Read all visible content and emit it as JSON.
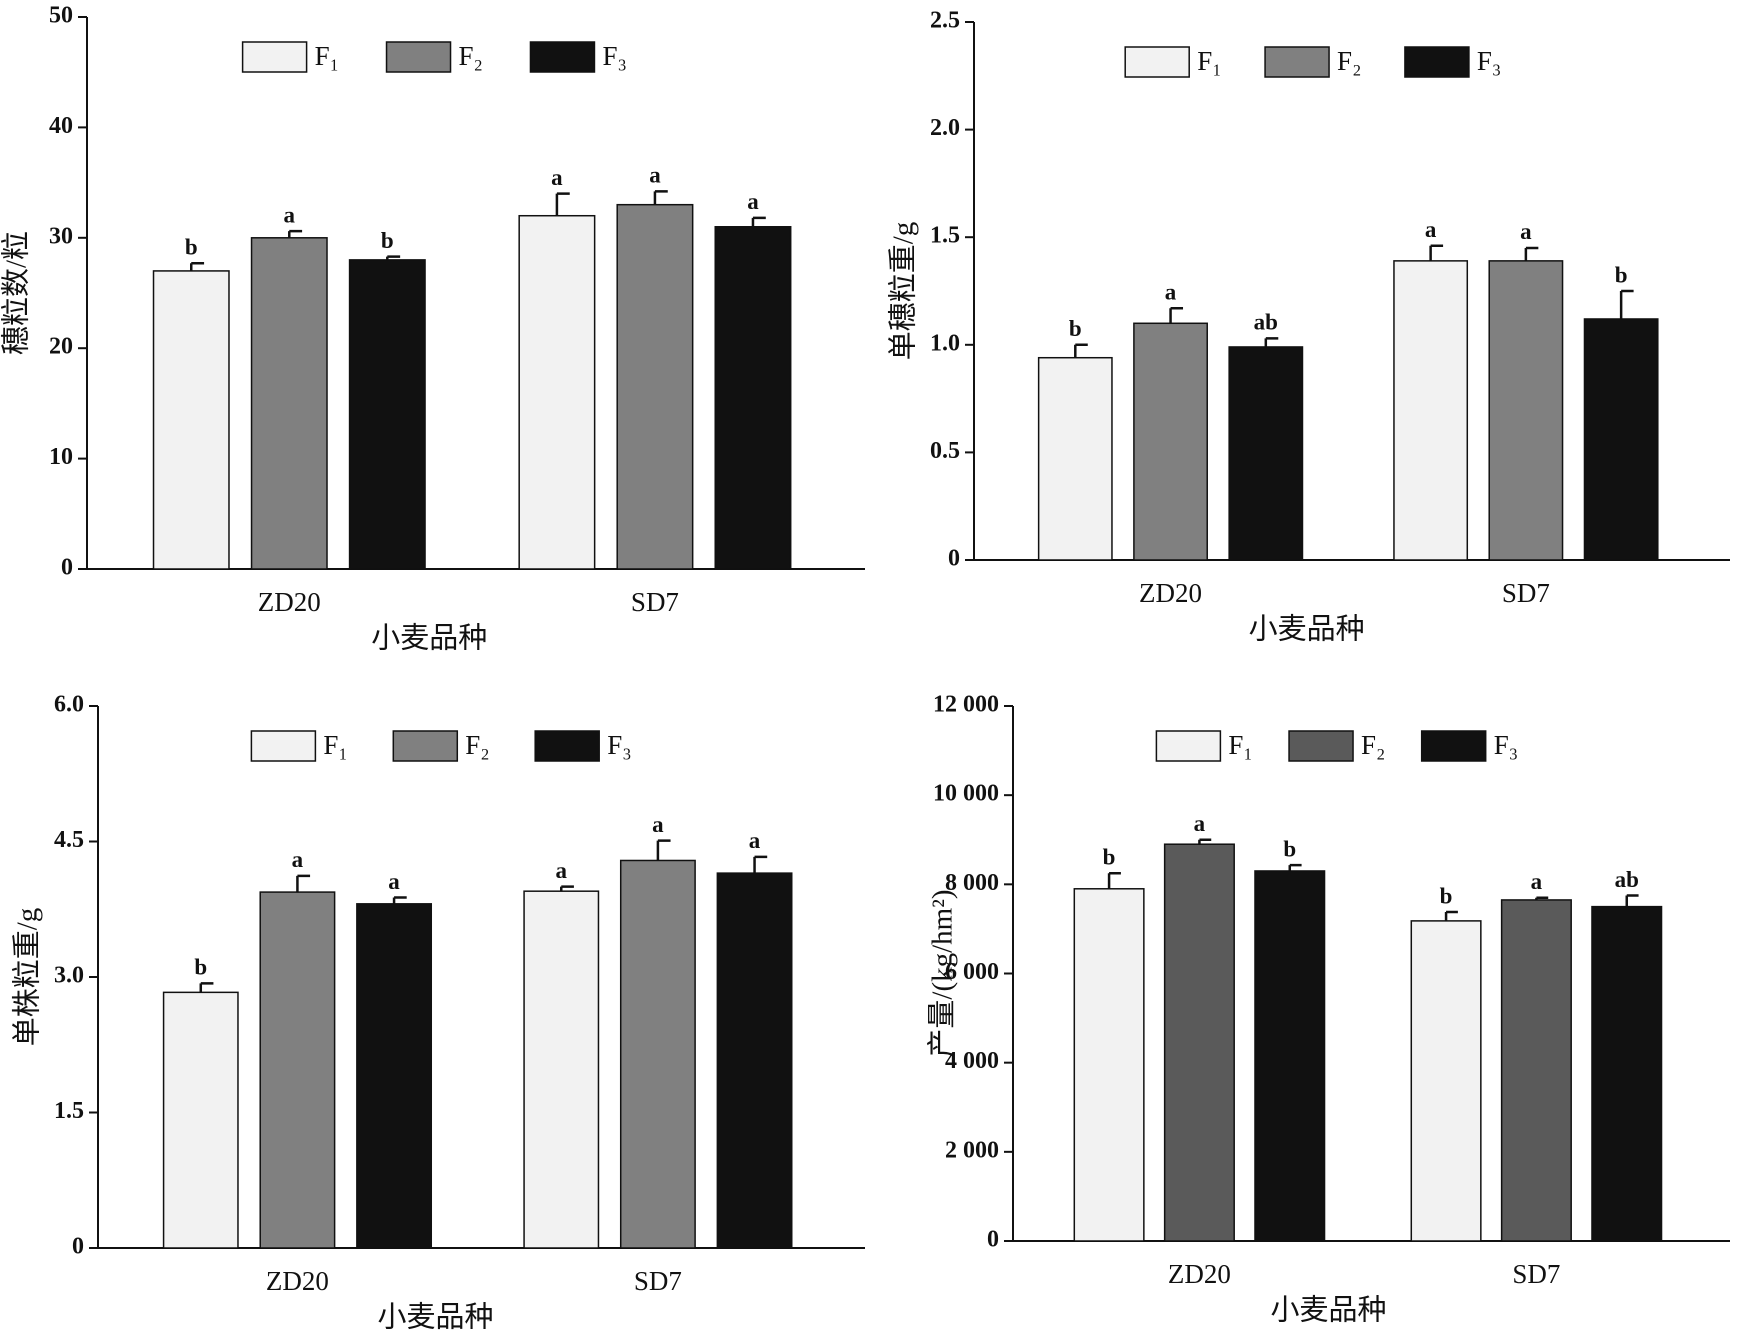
{
  "chart_data": [
    {
      "type": "bar",
      "y_label": "穗粒数/粒",
      "x_label": "小麦品种",
      "categories": [
        "ZD20",
        "SD7"
      ],
      "ylim": [
        0,
        50
      ],
      "yticks": [
        0,
        10,
        20,
        30,
        40,
        50
      ],
      "series": [
        {
          "name": "F₁",
          "color": "#f2f2f2",
          "values": [
            27,
            32
          ],
          "errors": [
            0.7,
            2.0
          ],
          "letters": [
            "b",
            "a"
          ]
        },
        {
          "name": "F₂",
          "color": "#808080",
          "values": [
            30,
            33
          ],
          "errors": [
            0.6,
            1.2
          ],
          "letters": [
            "a",
            "a"
          ]
        },
        {
          "name": "F₃",
          "color": "#111111",
          "values": [
            28,
            31
          ],
          "errors": [
            0.3,
            0.8
          ],
          "letters": [
            "b",
            "a"
          ]
        }
      ]
    },
    {
      "type": "bar",
      "y_label": "单穗粒重/g",
      "x_label": "小麦品种",
      "categories": [
        "ZD20",
        "SD7"
      ],
      "ylim": [
        0,
        2.5
      ],
      "yticks": [
        0,
        0.5,
        {
          "value": 1,
          "label": "1.0"
        },
        1.5,
        {
          "value": 2,
          "label": "2.0"
        },
        2.5
      ],
      "series": [
        {
          "name": "F₁",
          "color": "#f2f2f2",
          "values": [
            0.94,
            1.39
          ],
          "errors": [
            0.06,
            0.07
          ],
          "letters": [
            "b",
            "a"
          ]
        },
        {
          "name": "F₂",
          "color": "#808080",
          "values": [
            1.1,
            1.39
          ],
          "errors": [
            0.07,
            0.06
          ],
          "letters": [
            "a",
            "a"
          ]
        },
        {
          "name": "F₃",
          "color": "#111111",
          "values": [
            0.99,
            1.12
          ],
          "errors": [
            0.04,
            0.13
          ],
          "letters": [
            "ab",
            "b"
          ]
        }
      ]
    },
    {
      "type": "bar",
      "y_label": "单株粒重/g",
      "x_label": "小麦品种",
      "categories": [
        "ZD20",
        "SD7"
      ],
      "ylim": [
        0,
        6
      ],
      "yticks": [
        0,
        1.5,
        {
          "value": 3,
          "label": "3.0"
        },
        4.5,
        {
          "value": 6,
          "label": "6.0"
        }
      ],
      "series": [
        {
          "name": "F₁",
          "color": "#f2f2f2",
          "values": [
            2.83,
            3.95
          ],
          "errors": [
            0.1,
            0.05
          ],
          "letters": [
            "b",
            "a"
          ]
        },
        {
          "name": "F₂",
          "color": "#808080",
          "values": [
            3.94,
            4.29
          ],
          "errors": [
            0.18,
            0.22
          ],
          "letters": [
            "a",
            "a"
          ]
        },
        {
          "name": "F₃",
          "color": "#111111",
          "values": [
            3.81,
            4.15
          ],
          "errors": [
            0.07,
            0.18
          ],
          "letters": [
            "a",
            "a"
          ]
        }
      ]
    },
    {
      "type": "bar",
      "y_label": "产量/(kg/hm²)",
      "x_label": "小麦品种",
      "categories": [
        "ZD20",
        "SD7"
      ],
      "ylim": [
        0,
        12000
      ],
      "yticks": [
        0,
        {
          "value": 2000,
          "label": "2 000"
        },
        {
          "value": 4000,
          "label": "4 000"
        },
        {
          "value": 6000,
          "label": "6 000"
        },
        {
          "value": 8000,
          "label": "8 000"
        },
        {
          "value": 10000,
          "label": "10 000"
        },
        {
          "value": 12000,
          "label": "12 000"
        }
      ],
      "series": [
        {
          "name": "F₁",
          "color": "#f2f2f2",
          "values": [
            7900,
            7180
          ],
          "errors": [
            350,
            200
          ],
          "letters": [
            "b",
            "b"
          ]
        },
        {
          "name": "F₂",
          "color": "#5a5a5a",
          "values": [
            8900,
            7650
          ],
          "errors": [
            100,
            50
          ],
          "letters": [
            "a",
            "a"
          ]
        },
        {
          "name": "F₃",
          "color": "#111111",
          "values": [
            8300,
            7500
          ],
          "errors": [
            130,
            250
          ],
          "letters": [
            "b",
            "ab"
          ]
        }
      ]
    }
  ]
}
